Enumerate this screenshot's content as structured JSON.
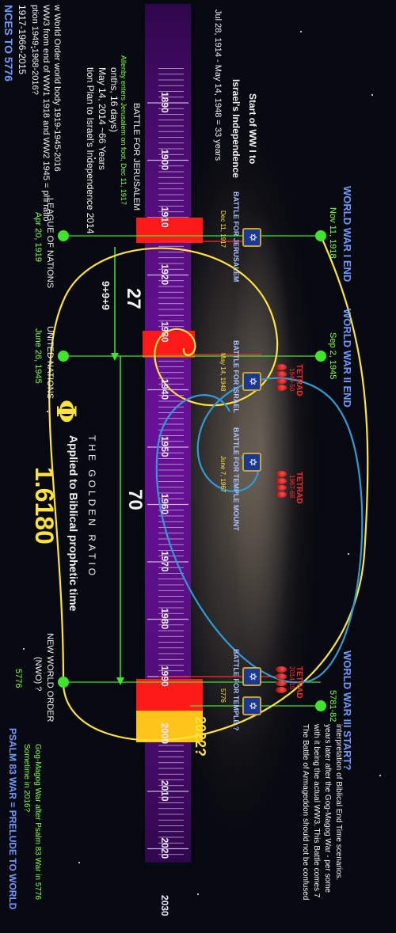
{
  "title": "NCES TO 5776",
  "header_lines": [
    "1917-1966-2015",
    "ption 1949-1968-2016?",
    "WW3 from end of WW1 1918 and WW2 1945 = phi ratio",
    "w World Order world body 1919-1945-2016"
  ],
  "plan_lines": [
    "tion Plan to Israel's Independence 2014",
    "May 14, 2014 ~66 Years",
    "onths, 16 days)"
  ],
  "ww1_start": {
    "title_1": "Start of WW I to",
    "title_2": "Israel's Independence",
    "dates": "Jul 28, 1914 - May 14, 1948 = 33 years"
  },
  "ruler": {
    "left_note": "Allenby enters Jerusalem on foot, Dec 11, 1917",
    "label": "BATTLE FOR JERUSALEM",
    "decades": [
      "1890",
      "1900",
      "1910",
      "1920",
      "1930",
      "1940",
      "1950",
      "1960",
      "1970",
      "1980",
      "1990",
      "2000",
      "2010",
      "2020",
      "2030"
    ]
  },
  "events_top": [
    {
      "title": "WORLD WAR I END",
      "date": "Nov 11, 1918"
    },
    {
      "title": "WORLD WAR II END",
      "date": "Sep 2, 1945"
    },
    {
      "title": "WORLD WAR III START?",
      "date": "5781-82"
    }
  ],
  "events_bottom": [
    {
      "title": "LEAGUE OF NATIONS",
      "date": "Apr 20, 1919"
    },
    {
      "title": "UNITED NATIONS",
      "date": "June 26, 1945"
    },
    {
      "title_1": "NEW WORLD ORDER",
      "title_2": "(NWO) ?",
      "date": "5776"
    }
  ],
  "battles": [
    {
      "label": "BATTLE FOR JERUSALEM",
      "date": "Dec 11, 1917"
    },
    {
      "label": "BATTLE FOR ISRAEL",
      "date": "May 14, 1948"
    },
    {
      "label": "BATTLE FOR TEMPLE MOUNT",
      "date": "June 7, 1967"
    },
    {
      "label": "BATTLE FOR TEMPLE ?",
      "date": "5776"
    }
  ],
  "tetrads": [
    {
      "label": "TETRAD",
      "years": "1949-50"
    },
    {
      "label": "TETRAD",
      "years": "1967-68"
    },
    {
      "label": "TETRAD",
      "years": "2014-15"
    }
  ],
  "interval_27": "27",
  "interval_sub": "9+9+9",
  "interval_70": "70",
  "year_2022": "2022?",
  "phi": {
    "symbol": "Φ",
    "name": "THE GOLDEN RATIO",
    "subtitle": "Applied to Biblical prophetic time",
    "value": "1.6180"
  },
  "armageddon_note": [
    "The Battle of Armageddon should not be confused",
    "with it being the actual WW3. This Battle comes 7",
    "years later after the Gog-Magog War - per some",
    "interpretation of Biblical End Time scenarios."
  ],
  "psalm": {
    "title": "PSALM 83 WAR = PRELUDE TO WORLD",
    "line_1": "Sometime in 2016?",
    "line_2": "Gog-Magog War after Psalm 83 War in 5776"
  },
  "colors": {
    "ruler": "#5b0b8a",
    "band_red": "#ff1a1a",
    "band_yellow": "#ffc51a",
    "spiral_yellow": "#ffe23a",
    "spiral_blue": "#2f9bd6",
    "green": "#3ee52b"
  }
}
